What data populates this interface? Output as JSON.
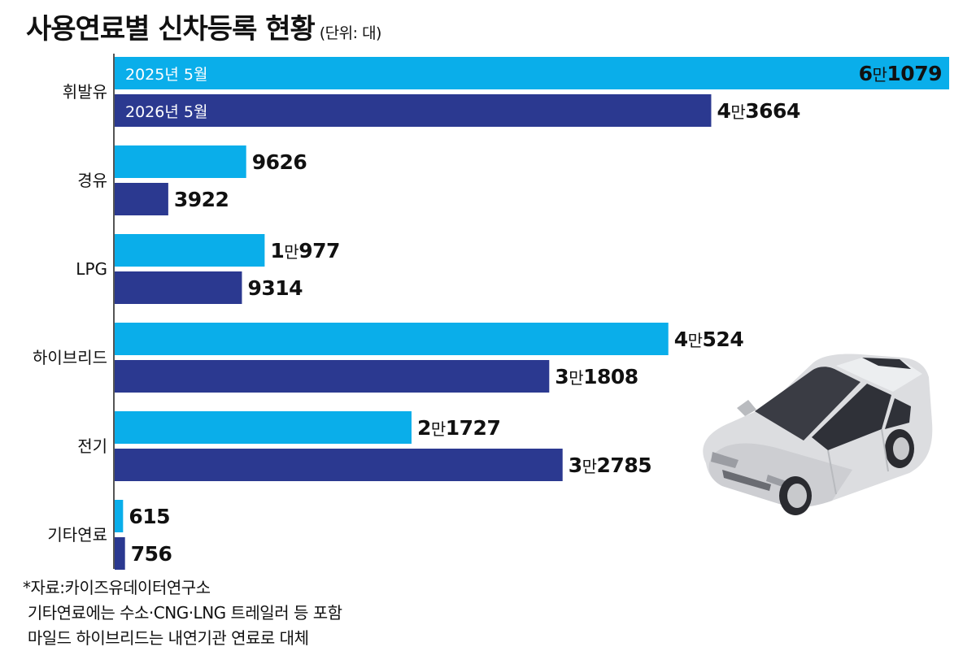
{
  "title": "사용연료별 신차등록 현황",
  "unit": "(단위: 대)",
  "colors": {
    "series_2025": "#0aaeea",
    "series_2026": "#2b3990",
    "axis": "#555555",
    "text": "#111111"
  },
  "chart_data": {
    "type": "bar",
    "orientation": "horizontal",
    "title": "사용연료별 신차등록 현황",
    "unit": "(단위: 대)",
    "categories": [
      "휘발유",
      "경유",
      "LPG",
      "하이브리드",
      "전기",
      "기타연료"
    ],
    "series": [
      {
        "name": "2025년 5월",
        "values": [
          61079,
          9626,
          10977,
          40524,
          21727,
          615
        ],
        "labels": [
          "6만1079",
          "9626",
          "1만977",
          "4만524",
          "2만1727",
          "615"
        ]
      },
      {
        "name": "2026년 5월",
        "values": [
          43664,
          3922,
          9314,
          31808,
          32785,
          756
        ],
        "labels": [
          "4만3664",
          "3922",
          "9314",
          "3만1808",
          "3만2785",
          "756"
        ]
      }
    ],
    "xlim": [
      0,
      61079
    ],
    "legend": "inside-first-bars",
    "grid": false
  },
  "notes": [
    "*자료:카이즈유데이터연구소",
    " 기타연료에는 수소·CNG·LNG 트레일러 등 포함",
    " 마일드 하이브리드는 내연기관 연료로 대체"
  ],
  "illustration": "car-icon"
}
